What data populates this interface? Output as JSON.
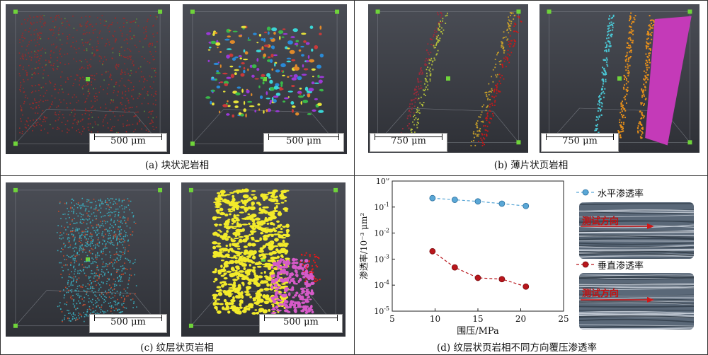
{
  "panels": {
    "a": {
      "caption": "(a) 块状泥岩相",
      "scale_left": "500 μm",
      "scale_right": "500 μm"
    },
    "b": {
      "caption": "(b) 薄片状页岩相",
      "scale_left": "750 μm",
      "scale_right": "750 μm"
    },
    "c": {
      "caption": "(c) 纹层状页岩相",
      "scale_left": "500 μm",
      "scale_right": "500 μm"
    },
    "d": {
      "caption": "(d) 纹层状页岩相不同方向覆压渗透率"
    }
  },
  "photos": {
    "top_label": "水平渗透率",
    "bottom_label": "垂直渗透率",
    "arrow_label_top": "测试方向",
    "arrow_label_bottom": "测试方向"
  },
  "colors": {
    "horizontal": "#5aa7d6",
    "vertical": "#b8161c",
    "panel_bg": "#3a3d44"
  },
  "chart_data": {
    "type": "scatter",
    "xlabel": "围压/MPa",
    "ylabel": "渗透率/10⁻³ μm²",
    "xlim": [
      5,
      25
    ],
    "x_ticks": [
      "5",
      "10",
      "15",
      "20",
      "25"
    ],
    "y_scale": "log",
    "ylim": [
      1e-05,
      1
    ],
    "y_ticks": [
      {
        "base": "10",
        "exp": "0"
      },
      {
        "base": "10",
        "exp": "-1"
      },
      {
        "base": "10",
        "exp": "-2"
      },
      {
        "base": "10",
        "exp": "-3"
      },
      {
        "base": "10",
        "exp": "-4"
      },
      {
        "base": "10",
        "exp": "-5"
      }
    ],
    "series": [
      {
        "name": "水平渗透率",
        "x": [
          9.7,
          12.3,
          15.0,
          17.8,
          20.6
        ],
        "y": [
          0.22,
          0.19,
          0.165,
          0.135,
          0.11
        ]
      },
      {
        "name": "垂直渗透率",
        "x": [
          9.7,
          12.3,
          15.0,
          17.8,
          20.6
        ],
        "y": [
          0.002,
          0.00048,
          0.00019,
          0.00017,
          8.8e-05
        ]
      }
    ]
  }
}
